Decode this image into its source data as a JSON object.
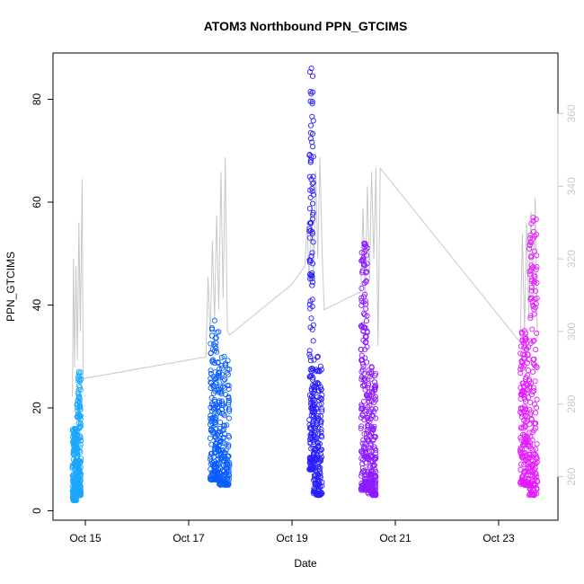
{
  "chart_data": {
    "type": "scatter",
    "title": "ATOM3 Northbound PPN_GTCIMS",
    "xlabel": "Date",
    "ylabel": "PPN_GTCIMS",
    "ylim": [
      0,
      88
    ],
    "y2lim": [
      250,
      375
    ],
    "x_ticks": [
      "Oct 15",
      "Oct 17",
      "Oct 19",
      "Oct 21",
      "Oct 23"
    ],
    "y_ticks": [
      0,
      20,
      40,
      60,
      80
    ],
    "y2_ticks": [
      260,
      280,
      300,
      320,
      340,
      360
    ],
    "grid": false,
    "legend": "none",
    "colors": {
      "line": "#c8c8c8",
      "axis": "#000000",
      "right_axis": "#c8c8c8"
    },
    "series": [
      {
        "color": "#1ba7ff",
        "clusters": [
          {
            "x_start": "2024-10-14 18:00",
            "x_end": "2024-10-14 20:00",
            "y_range": [
              2,
              16
            ]
          },
          {
            "x_start": "2024-10-14 20:00",
            "x_end": "2024-10-14 22:00",
            "y_range": [
              3,
              27
            ]
          }
        ]
      },
      {
        "color": "#0a5dff",
        "clusters": [
          {
            "x_start": "2024-10-17 10:00",
            "x_end": "2024-10-17 14:00",
            "y_range": [
              6,
              37
            ]
          },
          {
            "x_start": "2024-10-17 14:00",
            "x_end": "2024-10-17 19:00",
            "y_range": [
              5,
              30
            ]
          }
        ]
      },
      {
        "color": "#2a1fff",
        "clusters": [
          {
            "x_start": "2024-10-19 08:00",
            "x_end": "2024-10-19 10:00",
            "y_range": [
              8,
              86
            ]
          },
          {
            "x_start": "2024-10-19 10:00",
            "x_end": "2024-10-19 14:00",
            "y_range": [
              3,
              30
            ]
          }
        ]
      },
      {
        "color": "#8c1aff",
        "clusters": [
          {
            "x_start": "2024-10-20 08:00",
            "x_end": "2024-10-20 11:00",
            "y_range": [
              4,
              52
            ]
          },
          {
            "x_start": "2024-10-20 11:00",
            "x_end": "2024-10-20 15:00",
            "y_range": [
              3,
              28
            ]
          }
        ]
      },
      {
        "color": "#e31aff",
        "clusters": [
          {
            "x_start": "2024-10-23 10:00",
            "x_end": "2024-10-23 14:00",
            "y_range": [
              5,
              35
            ]
          },
          {
            "x_start": "2024-10-23 14:00",
            "x_end": "2024-10-23 18:00",
            "y_range": [
              3,
              57
            ]
          }
        ]
      }
    ],
    "line_series": {
      "axis": "right",
      "points": [
        {
          "x": "2024-10-14 18:00",
          "y": 282
        },
        {
          "x": "2024-10-14 18:30",
          "y": 320
        },
        {
          "x": "2024-10-14 19:00",
          "y": 290
        },
        {
          "x": "2024-10-14 19:40",
          "y": 318
        },
        {
          "x": "2024-10-14 20:20",
          "y": 292
        },
        {
          "x": "2024-10-14 21:00",
          "y": 330
        },
        {
          "x": "2024-10-14 21:40",
          "y": 300
        },
        {
          "x": "2024-10-14 22:30",
          "y": 342
        },
        {
          "x": "2024-10-14 23:00",
          "y": 287
        },
        {
          "x": "2024-10-17 08:00",
          "y": 293
        },
        {
          "x": "2024-10-17 09:00",
          "y": 315
        },
        {
          "x": "2024-10-17 10:00",
          "y": 298
        },
        {
          "x": "2024-10-17 11:00",
          "y": 325
        },
        {
          "x": "2024-10-17 12:00",
          "y": 303
        },
        {
          "x": "2024-10-17 13:00",
          "y": 332
        },
        {
          "x": "2024-10-17 14:00",
          "y": 306
        },
        {
          "x": "2024-10-17 15:00",
          "y": 344
        },
        {
          "x": "2024-10-17 16:00",
          "y": 309
        },
        {
          "x": "2024-10-17 17:00",
          "y": 348
        },
        {
          "x": "2024-10-17 18:00",
          "y": 300
        },
        {
          "x": "2024-10-17 19:00",
          "y": 299
        },
        {
          "x": "2024-10-19 00:00",
          "y": 313
        },
        {
          "x": "2024-10-19 06:00",
          "y": 318
        },
        {
          "x": "2024-10-19 07:00",
          "y": 330
        },
        {
          "x": "2024-10-19 08:00",
          "y": 312
        },
        {
          "x": "2024-10-19 09:00",
          "y": 336
        },
        {
          "x": "2024-10-19 10:00",
          "y": 316
        },
        {
          "x": "2024-10-19 11:00",
          "y": 344
        },
        {
          "x": "2024-10-19 12:00",
          "y": 320
        },
        {
          "x": "2024-10-19 13:00",
          "y": 348
        },
        {
          "x": "2024-10-19 14:00",
          "y": 322
        },
        {
          "x": "2024-10-19 15:00",
          "y": 306
        },
        {
          "x": "2024-10-20 08:00",
          "y": 311
        },
        {
          "x": "2024-10-20 09:00",
          "y": 334
        },
        {
          "x": "2024-10-20 10:00",
          "y": 310
        },
        {
          "x": "2024-10-20 11:00",
          "y": 340
        },
        {
          "x": "2024-10-20 12:00",
          "y": 314
        },
        {
          "x": "2024-10-20 13:00",
          "y": 344
        },
        {
          "x": "2024-10-20 14:00",
          "y": 320
        },
        {
          "x": "2024-10-20 15:00",
          "y": 345
        },
        {
          "x": "2024-10-20 16:00",
          "y": 296
        },
        {
          "x": "2024-10-20 17:00",
          "y": 345
        },
        {
          "x": "2024-10-23 10:00",
          "y": 297
        },
        {
          "x": "2024-10-23 11:00",
          "y": 327
        },
        {
          "x": "2024-10-23 12:00",
          "y": 300
        },
        {
          "x": "2024-10-23 13:00",
          "y": 330
        },
        {
          "x": "2024-10-23 14:00",
          "y": 305
        },
        {
          "x": "2024-10-23 15:00",
          "y": 333
        },
        {
          "x": "2024-10-23 16:00",
          "y": 310
        },
        {
          "x": "2024-10-23 17:00",
          "y": 337
        },
        {
          "x": "2024-10-23 18:00",
          "y": 298
        }
      ]
    }
  }
}
